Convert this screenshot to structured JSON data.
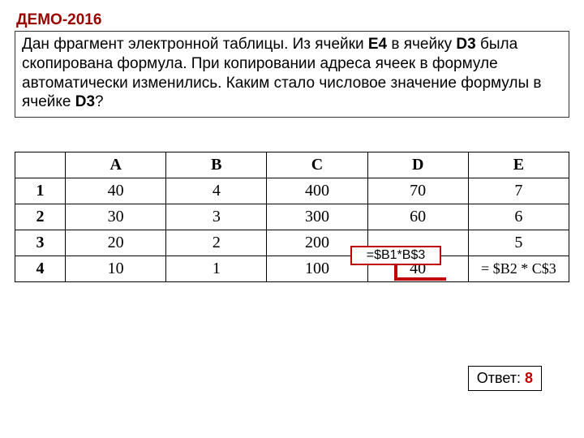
{
  "title": "ДЕМО-2016",
  "prompt": {
    "p1a": "Дан фрагмент электронной таблицы. Из ячейки ",
    "e4": "E4",
    "p1b": " в ячейку ",
    "d3a": "D3",
    "p2": " была скопирована формула. При копировании адреса ячеек в формуле автоматически изменились. Каким стало числовое значение формулы в ячейке ",
    "d3b": "D3",
    "q": "?"
  },
  "table": {
    "columns": [
      "A",
      "B",
      "C",
      "D",
      "E"
    ],
    "row_headers": [
      "1",
      "2",
      "3",
      "4"
    ],
    "rows": [
      [
        "40",
        "4",
        "400",
        "70",
        "7"
      ],
      [
        "30",
        "3",
        "300",
        "60",
        "6"
      ],
      [
        "20",
        "2",
        "200",
        "",
        "5"
      ],
      [
        "10",
        "1",
        "100",
        "40",
        "= $B2 * C$3"
      ]
    ],
    "header_bg": "#ffffff",
    "border_color": "#000000"
  },
  "d3_formula": "=$B1*B$3",
  "highlight_color": "#c00000",
  "answer": {
    "label": "Ответ: ",
    "value": "8"
  }
}
